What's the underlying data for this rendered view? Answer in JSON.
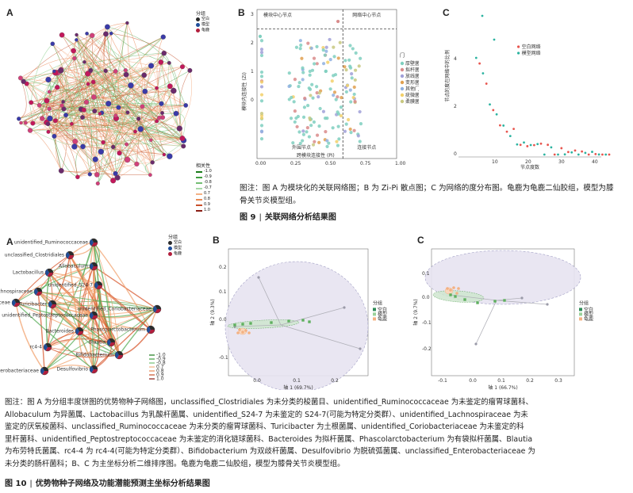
{
  "fig9": {
    "panelA": {
      "letter": "A",
      "legend_group_title": "分组",
      "groups": [
        {
          "label": "空白",
          "color": "#2b2b2b"
        },
        {
          "label": "模型",
          "color": "#1f4e9a"
        },
        {
          "label": "龟鹿",
          "color": "#b21e3c"
        }
      ],
      "legend_corr_title": "相关性",
      "corr_levels": [
        "-1.0",
        "-0.9",
        "-0.8",
        "-0.7",
        "0.7",
        "0.8",
        "0.9",
        "1.0"
      ],
      "corr_colors": [
        "#1a7a1a",
        "#3f9d3f",
        "#73bd73",
        "#a8d8a8",
        "#f3b184",
        "#e88a55",
        "#c8502b",
        "#8a1d14"
      ]
    },
    "panelB": {
      "letter": "B",
      "quadrants": {
        "module_hub": "模块中心节点",
        "network_hub": "网络中心节点",
        "peripheral": "外围节点",
        "connector": "连接节点"
      },
      "ylabel": "模块内连接性 (Zi)",
      "xlabel": "跨模块连接性 (Pi)",
      "legend_title": "门",
      "phyla": [
        {
          "label": "厚壁菌门",
          "color": "#7fcfbf"
        },
        {
          "label": "拟杆菌门",
          "color": "#d98b8b"
        },
        {
          "label": "放线菌门",
          "color": "#a0a0d8"
        },
        {
          "label": "变形菌门",
          "color": "#e0a050"
        },
        {
          "label": "其他门",
          "color": "#8fb0e0"
        },
        {
          "label": "疣微菌门",
          "color": "#f2d06a"
        },
        {
          "label": "柔膜菌门",
          "color": "#c8c880"
        }
      ],
      "y_ticks": [
        "3",
        "2",
        "1",
        "0"
      ],
      "x_ticks": [
        "0.00",
        "0.25",
        "0.50",
        "0.75",
        "1.00"
      ]
    },
    "panelC": {
      "letter": "C",
      "legend": [
        {
          "label": "空白网络",
          "color": "#e8554e"
        },
        {
          "label": "模型网络",
          "color": "#2bb3a0"
        }
      ],
      "ylabel": "节点的度在网络中的比例",
      "xlabel": "节点度数",
      "y_ticks": [
        "0",
        "2",
        "4"
      ],
      "x_ticks": [
        "10",
        "20",
        "30",
        "40"
      ]
    },
    "note": "图注：图 A 为模块化的关联网络图；B 为 Zi-Pi 散点图；C 为网络的度分布图。龟鹿为龟鹿二仙胶组，模型为膝骨关节炎模型组。",
    "caption_num": "图 9",
    "caption_text": "关联网络分析结果图"
  },
  "fig10": {
    "panelA": {
      "letter": "A",
      "legend_title": "分组",
      "groups": [
        {
          "label": "空白",
          "color": "#2b2b2b"
        },
        {
          "label": "模型",
          "color": "#1f4e9a"
        },
        {
          "label": "龟鹿",
          "color": "#b21e3c"
        }
      ],
      "corr_levels": [
        "-1.0",
        "-0.9",
        "-0.8",
        "0.7",
        "0.8",
        "0.9",
        "1.0"
      ],
      "nodes": [
        "unidentified_Ruminococcaceae",
        "unclassified_Clostridiales",
        "Allobaculum",
        "Lactobacillus",
        "unidentified_S24-7",
        "unidentified_Lachnospiraceae",
        "unclassified_Ruminococcaceae",
        "Turicibacter",
        "unidentified_Coriobacteriaceae",
        "unidentified_Peptostreptococcaceae",
        "Bacteroides",
        "Phascolarctobacterium",
        "Blautia",
        "rc4-4",
        "Bifidobacterium",
        "Desulfovibrio",
        "unclassified_Enterobacteriaceae"
      ]
    },
    "panelB": {
      "letter": "B",
      "ylabel": "轴 2 (9.3%)",
      "xlabel": "轴 1 (69.7%)",
      "legend_title": "分组",
      "legend": [
        {
          "label": "空白",
          "color": "#2e8b57"
        },
        {
          "label": "模型",
          "color": "#9ad29a"
        },
        {
          "label": "龟鹿",
          "color": "#f4b183"
        }
      ],
      "y_ticks": [
        "0.2",
        "0.1",
        "0.0",
        "-0.1"
      ],
      "x_ticks": [
        "0.0",
        "0.1",
        "0.2"
      ]
    },
    "panelC": {
      "letter": "C",
      "ylabel": "轴 2 (9.7%)",
      "xlabel": "轴 1 (66.7%)",
      "legend_title": "分组",
      "legend": [
        {
          "label": "空白",
          "color": "#2e8b57"
        },
        {
          "label": "模型",
          "color": "#9ad29a"
        },
        {
          "label": "龟鹿",
          "color": "#f4b183"
        }
      ],
      "y_ticks": [
        "0.1",
        "0.0",
        "-0.1",
        "-0.2"
      ],
      "x_ticks": [
        "-0.1",
        "0.0",
        "0.1",
        "0.2",
        "0.3"
      ]
    },
    "note_lines": [
      "图注：图 A 为分组丰度饼图的优势物种子网络图，unclassified_Clostridiales 为未分类的梭菌目、unidentified_Ruminococcaceae 为未鉴定的瘤胃球菌科、",
      "Allobaculum 为异菌属、Lactobacillus 为乳酸杆菌属、unidentified_S24-7 为未鉴定的 S24-7(可能为特定分类群）、unidentified_Lachnospiraceae 为未",
      "鉴定的厌氧梭菌科、unclassified_Ruminococcaceae 为未分类的瘤胃球菌科、Turicibacter 为土根菌属、unidentified_Coriobacteriaceae 为未鉴定的科",
      "里杆菌科、unidentified_Peptostreptococcaceae 为未鉴定的消化链球菌科、Bacteroides 为拟杆菌属、Phascolarctobacterium 为有袋拟杆菌属、Blautia",
      "为布劳特氏菌属、rc4-4 为 rc4-4(可能为特定分类群）、Bifidobacterium 为双歧杆菌属、Desulfovibrio 为脱硫弧菌属、unclassified_Enterobacteriaceae 为",
      "未分类的肠杆菌科；B、C 为主坐标分析二维排序图。龟鹿为龟鹿二仙胶组，模型为膝骨关节炎模型组。"
    ],
    "caption_num": "图 10",
    "caption_text": "优势物种子网络及功能潜能预测主坐标分析结果图"
  }
}
